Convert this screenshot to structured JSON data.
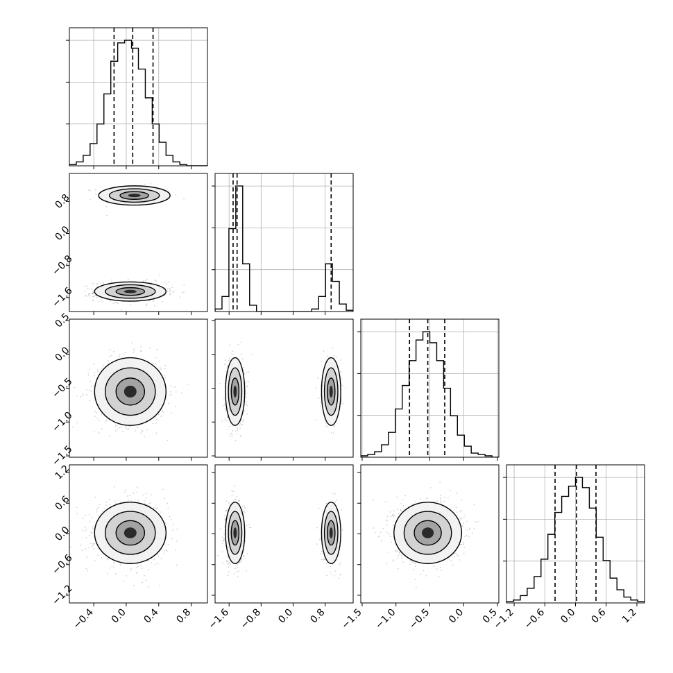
{
  "chart_data": {
    "type": "corner",
    "title": "",
    "parameter_labels": [
      "",
      "",
      "",
      ""
    ],
    "ranges": [
      [
        -0.7,
        1.0
      ],
      [
        -1.95,
        1.5
      ],
      [
        -1.52,
        0.52
      ],
      [
        -1.35,
        1.35
      ]
    ],
    "ticks": [
      [
        "−0.4",
        "0.0",
        "0.4",
        "0.8"
      ],
      [
        "−1.6",
        "−0.8",
        "0.0",
        "0.8"
      ],
      [
        "−1.5",
        "−1.0",
        "−0.5",
        "0.0",
        "0.5"
      ],
      [
        "−1.2",
        "−0.6",
        "0.0",
        "0.6",
        "1.2"
      ]
    ],
    "tick_values": [
      [
        -0.4,
        0.0,
        0.4,
        0.8
      ],
      [
        -1.6,
        -0.8,
        0.0,
        0.8
      ],
      [
        -1.5,
        -1.0,
        -0.5,
        0.0,
        0.5
      ],
      [
        -1.2,
        -0.6,
        0.0,
        0.6,
        1.2
      ]
    ],
    "quantiles": [
      [
        -0.15,
        0.08,
        0.33
      ],
      [
        -1.5,
        -1.4,
        0.95
      ],
      [
        -0.8,
        -0.53,
        -0.28
      ],
      [
        -0.4,
        0.02,
        0.4
      ]
    ],
    "histograms": [
      {
        "bin_edges": [
          -0.7,
          -0.615,
          -0.53,
          -0.445,
          -0.36,
          -0.275,
          -0.19,
          -0.105,
          -0.02,
          0.065,
          0.15,
          0.235,
          0.32,
          0.405,
          0.49,
          0.575,
          0.66,
          0.745,
          0.83,
          0.915,
          1.0
        ],
        "counts": [
          1,
          3,
          8,
          17,
          32,
          55,
          80,
          94,
          96,
          90,
          74,
          52,
          32,
          18,
          8,
          3,
          1,
          0,
          0,
          0
        ]
      },
      {
        "bin_edges": [
          -1.95,
          -1.7775,
          -1.605,
          -1.4325,
          -1.26,
          -1.0875,
          -0.915,
          -0.7425,
          -0.57,
          -0.3975,
          -0.225,
          -0.0525,
          0.12,
          0.2925,
          0.465,
          0.6375,
          0.81,
          0.9825,
          1.155,
          1.3275,
          1.5
        ],
        "counts": [
          2,
          12,
          66,
          100,
          38,
          5,
          0,
          0,
          0,
          0,
          0,
          0,
          0,
          0,
          2,
          12,
          38,
          24,
          6,
          1
        ]
      },
      {
        "bin_edges": [
          -1.52,
          -1.418,
          -1.316,
          -1.214,
          -1.112,
          -1.01,
          -0.908,
          -0.806,
          -0.704,
          -0.602,
          -0.5,
          -0.398,
          -0.296,
          -0.194,
          -0.092,
          0.01,
          0.112,
          0.214,
          0.316,
          0.418,
          0.52
        ],
        "counts": [
          1,
          2,
          4,
          9,
          18,
          35,
          52,
          70,
          85,
          91,
          83,
          70,
          50,
          30,
          16,
          8,
          3,
          2,
          1,
          0
        ]
      },
      {
        "bin_edges": [
          -1.35,
          -1.215,
          -1.08,
          -0.945,
          -0.81,
          -0.675,
          -0.54,
          -0.405,
          -0.27,
          -0.135,
          0.0,
          0.135,
          0.27,
          0.405,
          0.54,
          0.675,
          0.81,
          0.945,
          1.08,
          1.215,
          1.35
        ],
        "counts": [
          1,
          2,
          5,
          10,
          18,
          30,
          47,
          62,
          73,
          80,
          86,
          79,
          65,
          45,
          29,
          17,
          9,
          4,
          2,
          1
        ]
      }
    ],
    "density_panels": [
      {
        "row": 1,
        "col": 0,
        "clusters": [
          {
            "cx": 0.1,
            "cy": 0.95,
            "sx": 0.22,
            "sy": 0.12,
            "weight": 0.28
          },
          {
            "cx": 0.05,
            "cy": -1.45,
            "sx": 0.22,
            "sy": 0.12,
            "weight": 0.72
          }
        ]
      },
      {
        "row": 2,
        "col": 0,
        "clusters": [
          {
            "cx": 0.05,
            "cy": -0.55,
            "sx": 0.22,
            "sy": 0.25,
            "weight": 1.0
          }
        ]
      },
      {
        "row": 2,
        "col": 1,
        "clusters": [
          {
            "cx": -1.45,
            "cy": -0.55,
            "sx": 0.12,
            "sy": 0.25,
            "weight": 0.72
          },
          {
            "cx": 0.95,
            "cy": -0.55,
            "sx": 0.12,
            "sy": 0.25,
            "weight": 0.28
          }
        ]
      },
      {
        "row": 3,
        "col": 0,
        "clusters": [
          {
            "cx": 0.05,
            "cy": 0.02,
            "sx": 0.22,
            "sy": 0.3,
            "weight": 1.0
          }
        ]
      },
      {
        "row": 3,
        "col": 1,
        "clusters": [
          {
            "cx": -1.45,
            "cy": 0.02,
            "sx": 0.12,
            "sy": 0.3,
            "weight": 0.72
          },
          {
            "cx": 0.95,
            "cy": 0.02,
            "sx": 0.12,
            "sy": 0.3,
            "weight": 0.28
          }
        ]
      },
      {
        "row": 3,
        "col": 2,
        "clusters": [
          {
            "cx": -0.53,
            "cy": 0.02,
            "sx": 0.25,
            "sy": 0.3,
            "weight": 1.0
          }
        ]
      }
    ],
    "grid": true,
    "colors": {
      "line": "#000000",
      "grid": "#b0b0b0",
      "points": "#7f7f7f",
      "density_max": "#000000"
    }
  }
}
